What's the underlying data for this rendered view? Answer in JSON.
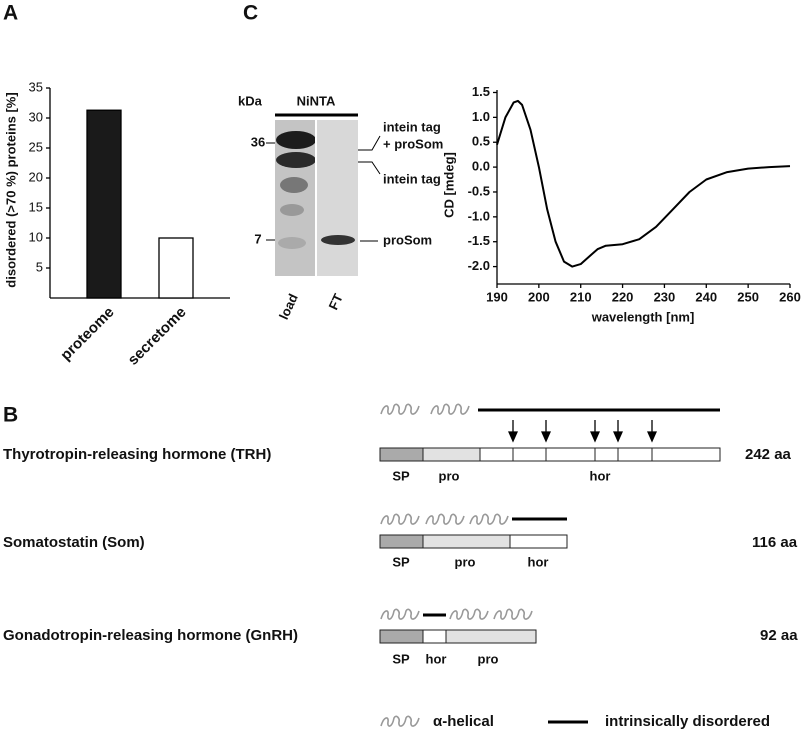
{
  "chart_data": [
    {
      "type": "bar",
      "panel": "A",
      "ylabel": "disordered (>70 %) proteins [%]",
      "categories": [
        "proteome",
        "secretome"
      ],
      "values": [
        31.3,
        10
      ],
      "colors": [
        "#1a1a1a",
        "#ffffff"
      ],
      "ylim": [
        0,
        35
      ],
      "yticks": [
        5,
        10,
        15,
        20,
        25,
        30,
        35
      ]
    },
    {
      "type": "line",
      "xlabel": "wavelength [nm]",
      "ylabel": "CD [mdeg]",
      "color": "#000000",
      "x": [
        190,
        192,
        194,
        195,
        196,
        198,
        200,
        202,
        204,
        206,
        208,
        210,
        212,
        214,
        216,
        220,
        224,
        228,
        232,
        236,
        240,
        245,
        250,
        255,
        260
      ],
      "values": [
        0.45,
        1.0,
        1.3,
        1.33,
        1.25,
        0.75,
        0.0,
        -0.85,
        -1.5,
        -1.9,
        -2.0,
        -1.95,
        -1.8,
        -1.65,
        -1.58,
        -1.55,
        -1.45,
        -1.2,
        -0.85,
        -0.5,
        -0.25,
        -0.1,
        -0.03,
        0.0,
        0.02
      ],
      "xlim": [
        190,
        260
      ],
      "xticks": [
        190,
        200,
        210,
        220,
        230,
        240,
        250,
        260
      ],
      "ylim": [
        -2.35,
        1.55
      ],
      "yticks": [
        {
          "value": -2,
          "label": "-2.0"
        },
        -1.5,
        {
          "value": -1,
          "label": "-1.0"
        },
        -0.5,
        {
          "value": 0,
          "label": "0.0"
        },
        0.5,
        {
          "value": 1,
          "label": "1.0"
        },
        1.5
      ]
    }
  ],
  "blot": {
    "panel": "C",
    "unit": "kDa",
    "header": "NiNTA",
    "markers": [
      "36",
      "7"
    ],
    "lanes": [
      "load",
      "FT"
    ],
    "annotations": [
      "intein tag",
      "+ proSom",
      "intein tag",
      "proSom"
    ]
  },
  "diagram": {
    "panel": "B",
    "proteins": [
      {
        "name": "Thyrotropin-releasing hormone (TRH)",
        "length": "242 aa",
        "labels": [
          "SP",
          "pro",
          "hor"
        ]
      },
      {
        "name": "Somatostatin (Som)",
        "length": "116 aa",
        "labels": [
          "SP",
          "pro",
          "hor"
        ]
      },
      {
        "name": "Gonadotropin-releasing hormone (GnRH)",
        "length": "92 aa",
        "labels": [
          "SP",
          "hor",
          "pro"
        ]
      }
    ],
    "legend": [
      "α-helical",
      "intrinsically disordered"
    ]
  }
}
